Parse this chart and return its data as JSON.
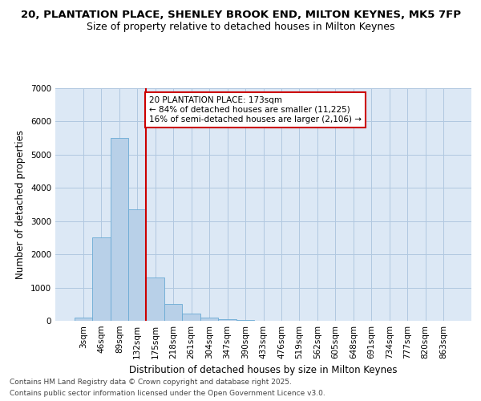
{
  "title_line1": "20, PLANTATION PLACE, SHENLEY BROOK END, MILTON KEYNES, MK5 7FP",
  "title_line2": "Size of property relative to detached houses in Milton Keynes",
  "xlabel": "Distribution of detached houses by size in Milton Keynes",
  "ylabel": "Number of detached properties",
  "bin_labels": [
    "3sqm",
    "46sqm",
    "89sqm",
    "132sqm",
    "175sqm",
    "218sqm",
    "261sqm",
    "304sqm",
    "347sqm",
    "390sqm",
    "433sqm",
    "476sqm",
    "519sqm",
    "562sqm",
    "605sqm",
    "648sqm",
    "691sqm",
    "734sqm",
    "777sqm",
    "820sqm",
    "863sqm"
  ],
  "bar_values": [
    100,
    2500,
    5500,
    3350,
    1300,
    500,
    220,
    100,
    60,
    30,
    0,
    0,
    0,
    0,
    0,
    0,
    0,
    0,
    0,
    0,
    0
  ],
  "bar_color": "#b8d0e8",
  "bar_edge_color": "#6aaad4",
  "background_color": "#dce8f5",
  "grid_color": "#b0c8e0",
  "red_line_bin": 4,
  "red_line_color": "#cc0000",
  "annotation_line1": "20 PLANTATION PLACE: 173sqm",
  "annotation_line2": "← 84% of detached houses are smaller (11,225)",
  "annotation_line3": "16% of semi-detached houses are larger (2,106) →",
  "annotation_box_edgecolor": "#cc0000",
  "ylim": [
    0,
    7000
  ],
  "yticks": [
    0,
    1000,
    2000,
    3000,
    4000,
    5000,
    6000,
    7000
  ],
  "footer_line1": "Contains HM Land Registry data © Crown copyright and database right 2025.",
  "footer_line2": "Contains public sector information licensed under the Open Government Licence v3.0.",
  "title_fontsize": 9.5,
  "subtitle_fontsize": 9,
  "axis_label_fontsize": 8.5,
  "tick_fontsize": 7.5,
  "annotation_fontsize": 7.5,
  "footer_fontsize": 6.5
}
